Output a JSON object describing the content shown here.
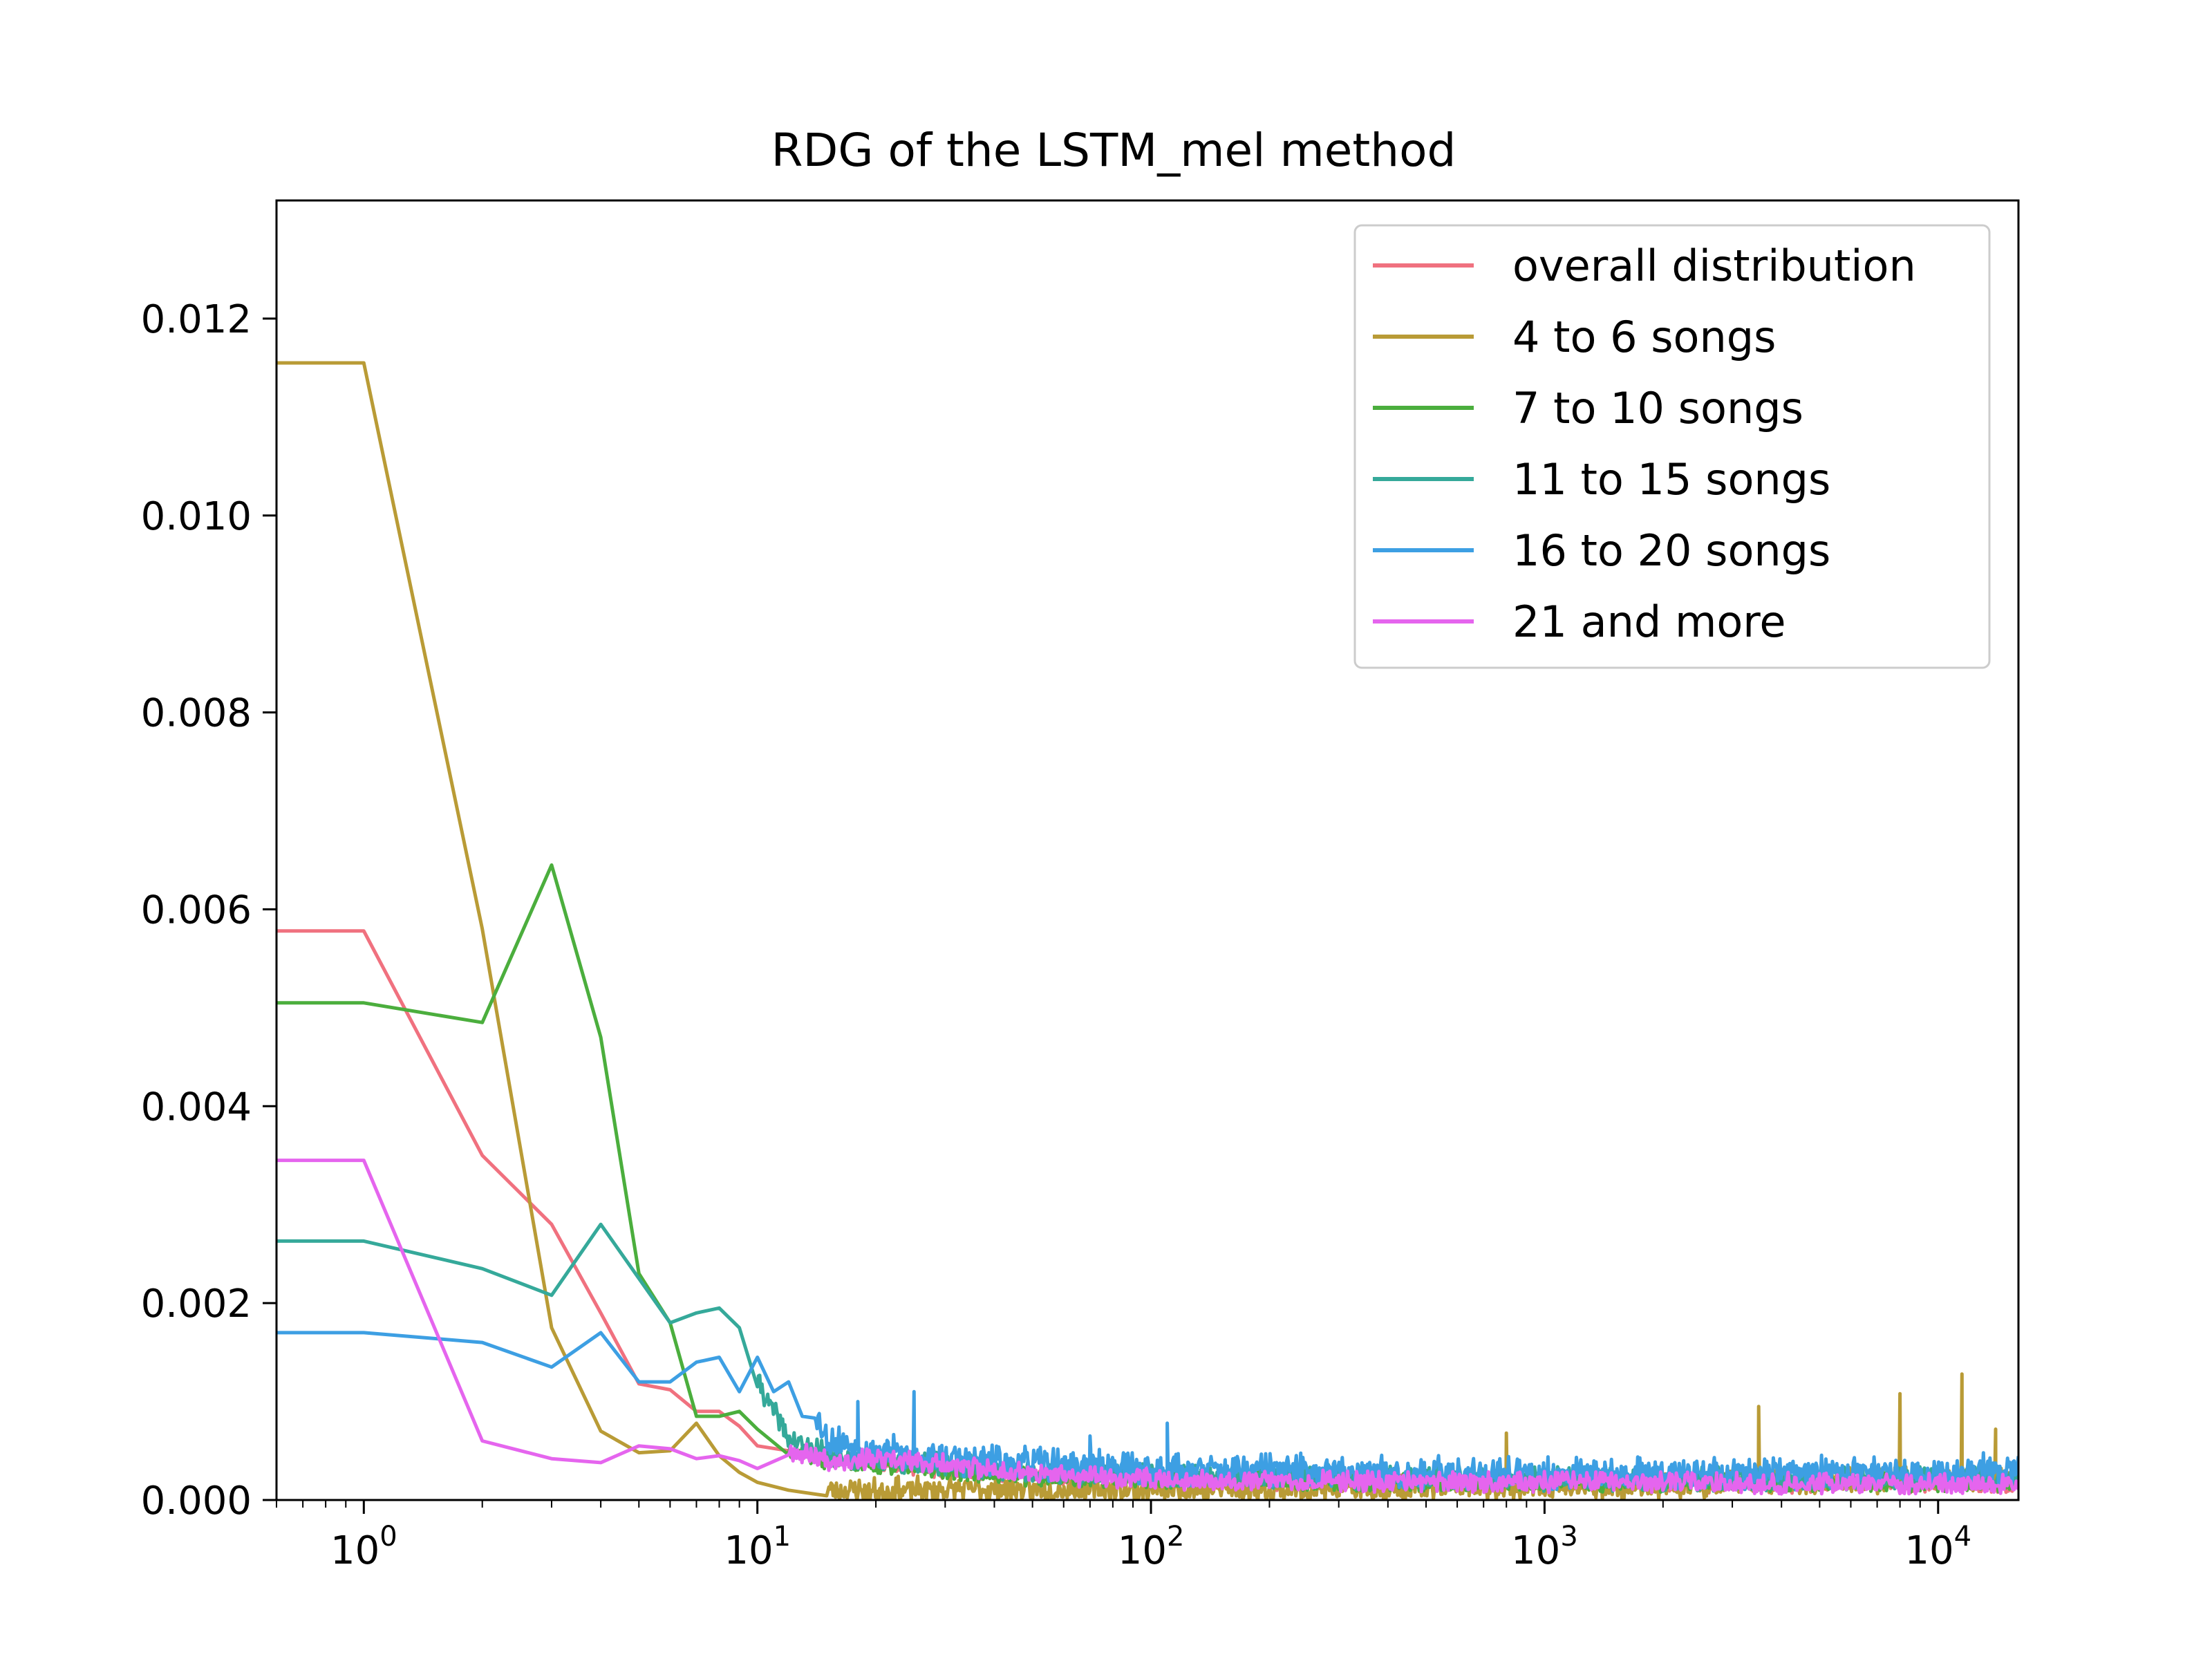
{
  "chart_data": {
    "type": "line",
    "title": "RDG of the LSTM_mel method",
    "xlabel": "",
    "ylabel": "",
    "xscale": "log",
    "xlim": [
      0.6,
      16000
    ],
    "ylim": [
      0,
      0.0132
    ],
    "x_ticks": [
      {
        "value": 1,
        "base": "10",
        "exp": "0"
      },
      {
        "value": 10,
        "base": "10",
        "exp": "1"
      },
      {
        "value": 100,
        "base": "10",
        "exp": "2"
      },
      {
        "value": 1000,
        "base": "10",
        "exp": "3"
      },
      {
        "value": 10000,
        "base": "10",
        "exp": "4"
      }
    ],
    "y_ticks": [
      {
        "value": 0.0,
        "label": "0.000"
      },
      {
        "value": 0.002,
        "label": "0.002"
      },
      {
        "value": 0.004,
        "label": "0.004"
      },
      {
        "value": 0.006,
        "label": "0.006"
      },
      {
        "value": 0.008,
        "label": "0.008"
      },
      {
        "value": 0.01,
        "label": "0.010"
      },
      {
        "value": 0.012,
        "label": "0.012"
      }
    ],
    "legend_position": "top-right",
    "grid": false,
    "series": [
      {
        "name": "overall distribution",
        "color": "#f0717f",
        "x": [
          0.6,
          1,
          2,
          3,
          4,
          5,
          6,
          7,
          8,
          9,
          10,
          12,
          15,
          20,
          30,
          50,
          100,
          300,
          1000,
          3000,
          10000,
          16000
        ],
        "y": [
          0.00578,
          0.00578,
          0.0035,
          0.0028,
          0.0019,
          0.00118,
          0.00112,
          0.0009,
          0.0009,
          0.00075,
          0.00055,
          0.0005,
          0.00042,
          0.00038,
          0.0003,
          0.00025,
          0.0002,
          0.00018,
          0.00017,
          0.00016,
          0.00016,
          0.00016
        ],
        "noise": {
          "from": 20,
          "amp": 0.0002,
          "seed": 11
        }
      },
      {
        "name": "4 to 6 songs",
        "color": "#b99b36",
        "x": [
          0.6,
          1,
          2,
          3,
          4,
          5,
          6,
          7,
          8,
          9,
          10,
          12,
          15,
          20,
          30,
          50,
          100,
          300,
          1000,
          3000,
          10000,
          16000
        ],
        "y": [
          0.01155,
          0.01155,
          0.0058,
          0.00175,
          0.0007,
          0.00048,
          0.0005,
          0.00078,
          0.00045,
          0.00028,
          0.00018,
          0.0001,
          0.0001,
          8e-05,
          0.0001,
          0.0001,
          0.0001,
          0.0001,
          0.00012,
          0.00015,
          0.0002,
          0.0002
        ],
        "noise": {
          "from": 15,
          "amp": 0.00028,
          "seed": 23
        },
        "spikes": [
          [
            800,
            0.00068
          ],
          [
            3500,
            0.00095
          ],
          [
            8000,
            0.00108
          ],
          [
            11500,
            0.00128
          ],
          [
            14000,
            0.00072
          ]
        ]
      },
      {
        "name": "7 to 10 songs",
        "color": "#4bae3d",
        "x": [
          0.6,
          1,
          2,
          3,
          4,
          5,
          6,
          7,
          8,
          9,
          10,
          12,
          15,
          20,
          30,
          50,
          100,
          300,
          1000,
          3000,
          10000,
          16000
        ],
        "y": [
          0.00505,
          0.00505,
          0.00485,
          0.00645,
          0.0047,
          0.0023,
          0.0018,
          0.00085,
          0.00085,
          0.0009,
          0.00072,
          0.0005,
          0.0004,
          0.00035,
          0.0003,
          0.00022,
          0.0002,
          0.00018,
          0.00017,
          0.00017,
          0.00017,
          0.00017
        ],
        "noise": {
          "from": 12,
          "amp": 0.0002,
          "seed": 37
        }
      },
      {
        "name": "11 to 15 songs",
        "color": "#35a99a",
        "x": [
          0.6,
          1,
          2,
          3,
          4,
          5,
          6,
          7,
          8,
          9,
          10,
          12,
          15,
          20,
          30,
          50,
          100,
          300,
          1000,
          3000,
          10000,
          16000
        ],
        "y": [
          0.00263,
          0.00263,
          0.00235,
          0.00208,
          0.0028,
          0.00225,
          0.0018,
          0.0019,
          0.00195,
          0.00175,
          0.0012,
          0.0006,
          0.00045,
          0.0004,
          0.00035,
          0.00028,
          0.00025,
          0.00022,
          0.0002,
          0.0002,
          0.00022,
          0.00022
        ],
        "noise": {
          "from": 10,
          "amp": 0.00025,
          "seed": 41
        }
      },
      {
        "name": "16 to 20 songs",
        "color": "#3d9fe3",
        "x": [
          0.6,
          1,
          2,
          3,
          4,
          5,
          6,
          7,
          8,
          9,
          10,
          11,
          12,
          13,
          14,
          15,
          20,
          30,
          50,
          100,
          300,
          1000,
          3000,
          10000,
          16000
        ],
        "y": [
          0.0017,
          0.0017,
          0.0016,
          0.00135,
          0.0017,
          0.0012,
          0.0012,
          0.0014,
          0.00145,
          0.0011,
          0.00145,
          0.0011,
          0.0012,
          0.00085,
          0.0009,
          0.0006,
          0.0005,
          0.0004,
          0.00035,
          0.0003,
          0.00028,
          0.00025,
          0.00025,
          0.00028,
          0.0003
        ],
        "noise": {
          "from": 14,
          "amp": 0.00035,
          "seed": 53
        },
        "spikes": [
          [
            18,
            0.001
          ],
          [
            25,
            0.0011
          ],
          [
            70,
            0.00065
          ],
          [
            110,
            0.00078
          ]
        ]
      },
      {
        "name": "21 and more",
        "color": "#e565ee",
        "x": [
          0.6,
          1,
          2,
          3,
          4,
          5,
          6,
          7,
          8,
          9,
          10,
          12,
          15,
          20,
          30,
          50,
          100,
          300,
          1000,
          3000,
          10000,
          16000
        ],
        "y": [
          0.00345,
          0.00345,
          0.0006,
          0.00042,
          0.00038,
          0.00055,
          0.00052,
          0.00042,
          0.00045,
          0.0004,
          0.00032,
          0.0005,
          0.0004,
          0.0004,
          0.00035,
          0.00025,
          0.0002,
          0.00018,
          0.00017,
          0.00016,
          0.00016,
          0.00016
        ],
        "noise": {
          "from": 12,
          "amp": 0.00022,
          "seed": 67
        }
      }
    ]
  }
}
